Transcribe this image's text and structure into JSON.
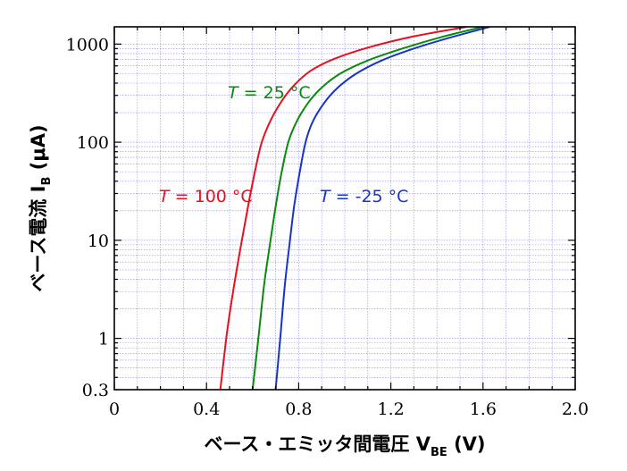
{
  "chart_data": {
    "type": "line",
    "xlabel": {
      "main": "ベース・エミッタ間電圧 V",
      "sub": "BE",
      "unit": " (V)"
    },
    "ylabel": {
      "main": "ベース電流 I",
      "sub": "B",
      "unit": " (μA)"
    },
    "xlim": [
      0,
      2.0
    ],
    "ylim": [
      0.3,
      1500
    ],
    "y_scale": "log",
    "grid": true,
    "x_ticks": [
      "0",
      "0.4",
      "0.8",
      "1.2",
      "1.6",
      "2.0"
    ],
    "x_tick_values": [
      0,
      0.4,
      0.8,
      1.2,
      1.6,
      2.0
    ],
    "y_ticks": [
      "0.3",
      "1",
      "10",
      "100",
      "1000"
    ],
    "y_tick_values": [
      0.3,
      1,
      10,
      100,
      1000
    ],
    "series": [
      {
        "label_prefix": "T",
        "label_suffix": " = 100 °C",
        "color": "#e8101e",
        "x": [
          0.46,
          0.49,
          0.52,
          0.55,
          0.58,
          0.61,
          0.64,
          0.68,
          0.73,
          0.78,
          0.85,
          0.95,
          1.1,
          1.3,
          1.53
        ],
        "y": [
          0.3,
          1.2,
          3.5,
          9,
          22,
          50,
          100,
          170,
          270,
          380,
          530,
          700,
          920,
          1200,
          1500
        ]
      },
      {
        "label_prefix": "T",
        "label_suffix": " = 25 °C",
        "color": "#0a8a0a",
        "x": [
          0.6,
          0.625,
          0.65,
          0.675,
          0.7,
          0.725,
          0.755,
          0.79,
          0.84,
          0.9,
          0.98,
          1.1,
          1.25,
          1.42,
          1.6
        ],
        "y": [
          0.3,
          1.0,
          3.5,
          9,
          22,
          48,
          100,
          160,
          250,
          360,
          500,
          680,
          900,
          1180,
          1500
        ]
      },
      {
        "label_prefix": "T",
        "label_suffix": " = -25 °C",
        "color": "#1634c8",
        "x": [
          0.7,
          0.72,
          0.74,
          0.76,
          0.78,
          0.805,
          0.83,
          0.86,
          0.91,
          0.97,
          1.05,
          1.16,
          1.3,
          1.46,
          1.63
        ],
        "y": [
          0.3,
          1.0,
          3.5,
          9,
          22,
          50,
          100,
          160,
          250,
          360,
          500,
          680,
          900,
          1170,
          1500
        ]
      }
    ]
  }
}
